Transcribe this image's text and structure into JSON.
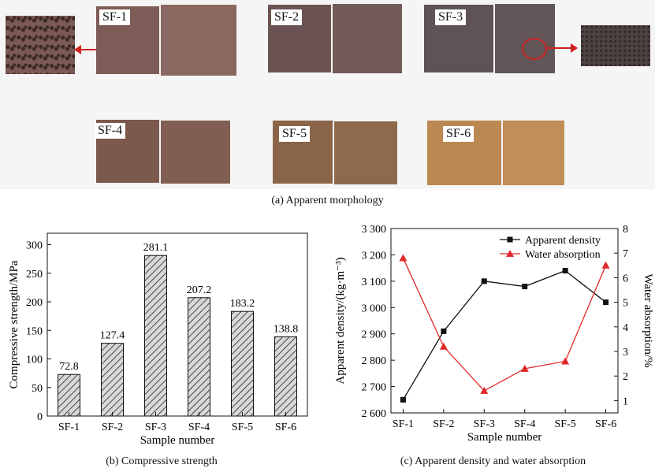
{
  "panel_a": {
    "caption": "(a) Apparent morphology",
    "samples": [
      {
        "label": "SF-1",
        "color": "#7a5a55"
      },
      {
        "label": "SF-2",
        "color": "#6e5452"
      },
      {
        "label": "SF-3",
        "color": "#5e5256"
      },
      {
        "label": "SF-4",
        "color": "#7d5a4c"
      },
      {
        "label": "SF-5",
        "color": "#8a6447"
      },
      {
        "label": "SF-6",
        "color": "#b98650"
      }
    ]
  },
  "chart_data": [
    {
      "type": "bar",
      "caption": "(b) Compressive strength",
      "xlabel": "Sample number",
      "ylabel": "Compressive strength/MPa",
      "categories": [
        "SF-1",
        "SF-2",
        "SF-3",
        "SF-4",
        "SF-5",
        "SF-6"
      ],
      "values": [
        72.8,
        127.4,
        281.1,
        207.2,
        183.2,
        138.8
      ],
      "value_labels": [
        "72.8",
        "127.4",
        "281.1",
        "207.2",
        "183.2",
        "138.8"
      ],
      "ylim": [
        0,
        320
      ],
      "yticks": [
        "0",
        "50",
        "100",
        "150",
        "200",
        "250",
        "300"
      ],
      "ytick_values": [
        0,
        50,
        100,
        150,
        200,
        250,
        300
      ],
      "grid": false
    },
    {
      "type": "line",
      "caption": "(c) Apparent density and water absorption",
      "xlabel": "Sample number",
      "ylabel_left": "Apparent density/(kg·m⁻³)",
      "ylabel_right": "Water absorption/%",
      "categories": [
        "SF-1",
        "SF-2",
        "SF-3",
        "SF-4",
        "SF-5",
        "SF-6"
      ],
      "ylim_left": [
        2600,
        3300
      ],
      "yticks_left": [
        "2 600",
        "2 700",
        "2 800",
        "2 900",
        "3 000",
        "3 100",
        "3 200",
        "3 300"
      ],
      "ytick_values_left": [
        2600,
        2700,
        2800,
        2900,
        3000,
        3100,
        3200,
        3300
      ],
      "ylim_right": [
        0.5,
        8
      ],
      "yticks_right": [
        "1",
        "2",
        "3",
        "4",
        "5",
        "6",
        "7",
        "8"
      ],
      "ytick_values_right": [
        1,
        2,
        3,
        4,
        5,
        6,
        7,
        8
      ],
      "legend_position": "top-right",
      "series": [
        {
          "name": "Apparent density",
          "axis": "left",
          "marker": "square",
          "color": "#111111",
          "values": [
            2650,
            2910,
            3100,
            3080,
            3140,
            3020
          ]
        },
        {
          "name": "Water absorption",
          "axis": "right",
          "marker": "triangle",
          "color": "#e0282a",
          "values": [
            6.8,
            3.2,
            1.4,
            2.3,
            2.6,
            6.5
          ]
        }
      ],
      "grid": false
    }
  ]
}
